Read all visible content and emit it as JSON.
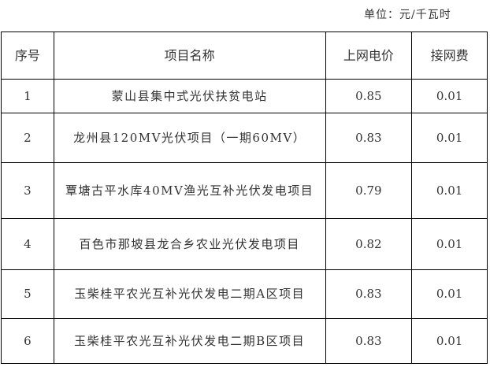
{
  "unit_note": "单位：元/千瓦时",
  "headers": [
    "序号",
    "项目名称",
    "上网电价",
    "接网费"
  ],
  "rows": [
    {
      "no": "1",
      "name": "蒙山县集中式光伏扶贫电站",
      "price": "0.85",
      "fee": "0.01"
    },
    {
      "no": "2",
      "name": "龙州县120MV光伏项目（一期60MV）",
      "price": "0.83",
      "fee": "0.01"
    },
    {
      "no": "3",
      "name": "覃塘古平水库40MV渔光互补光伏发电项目",
      "price": "0.79",
      "fee": "0.01"
    },
    {
      "no": "4",
      "name": "百色市那坡县龙合乡农业光伏发电项目",
      "price": "0.82",
      "fee": "0.01"
    },
    {
      "no": "5",
      "name": "玉柴桂平农光互补光伏发电二期A区项目",
      "price": "0.83",
      "fee": "0.01"
    },
    {
      "no": "6",
      "name": "玉柴桂平农光互补光伏发电二期B区项目",
      "price": "0.83",
      "fee": "0.01"
    }
  ]
}
